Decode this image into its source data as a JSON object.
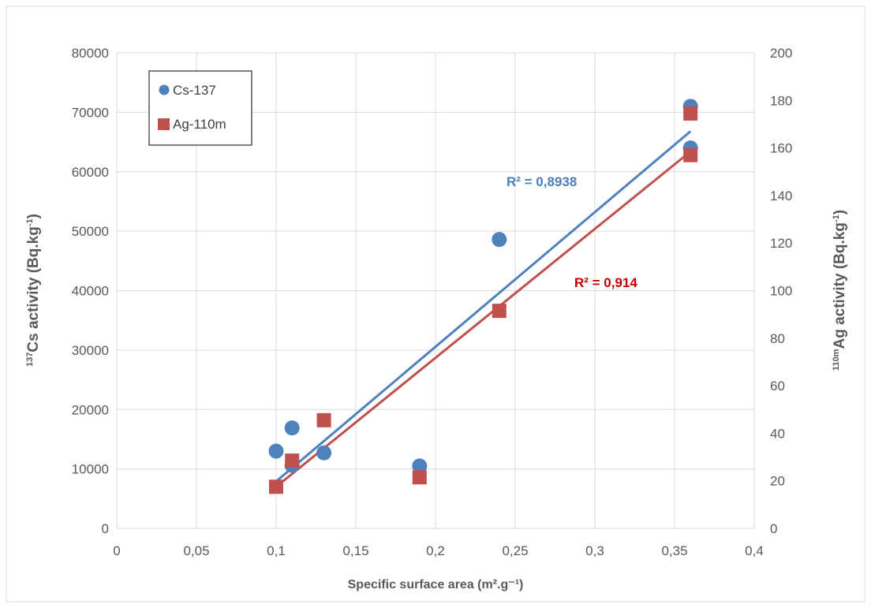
{
  "chart_data": {
    "type": "scatter",
    "xlabel": "Specific surface area (m².g⁻¹)",
    "ylabel_left": {
      "sup": "137",
      "main": "Cs  activity (Bq.kg",
      "exp": "-1",
      "close": ")"
    },
    "ylabel_right": {
      "sup": "110m",
      "main": "Ag  activity (Bq.kg",
      "exp": "-1",
      "close": ")"
    },
    "xlim": [
      0,
      0.4
    ],
    "ylim_left": [
      0,
      80000
    ],
    "ylim_right": [
      0,
      200
    ],
    "x_ticks": [
      "0",
      "0,05",
      "0,1",
      "0,15",
      "0,2",
      "0,25",
      "0,3",
      "0,35",
      "0,4"
    ],
    "y_left_ticks": [
      "0",
      "10000",
      "20000",
      "30000",
      "40000",
      "50000",
      "60000",
      "70000",
      "80000"
    ],
    "y_right_ticks": [
      "0",
      "20",
      "40",
      "60",
      "80",
      "100",
      "120",
      "140",
      "160",
      "180",
      "200"
    ],
    "grid": true,
    "legend_position": "top-left",
    "series": [
      {
        "name": "Cs-137",
        "axis": "left",
        "marker": "circle",
        "color": "#4f81bd",
        "points": [
          [
            0.1,
            13000
          ],
          [
            0.11,
            16900
          ],
          [
            0.11,
            10600
          ],
          [
            0.13,
            12700
          ],
          [
            0.19,
            10500
          ],
          [
            0.24,
            48600
          ],
          [
            0.36,
            71000
          ],
          [
            0.36,
            64000
          ]
        ],
        "trendline": {
          "x": [
            0.1,
            0.36
          ],
          "y": [
            7900,
            66800
          ],
          "label": "R² = 0,8938",
          "label_color": "#4a7ebb"
        }
      },
      {
        "name": "Ag-110m",
        "axis": "right",
        "marker": "square",
        "color": "#c0504d",
        "points": [
          [
            0.1,
            17.5
          ],
          [
            0.11,
            28.5
          ],
          [
            0.13,
            45.5
          ],
          [
            0.19,
            21.5
          ],
          [
            0.24,
            91.5
          ],
          [
            0.36,
            174.5
          ],
          [
            0.36,
            157
          ]
        ],
        "trendline": {
          "x": [
            0.1,
            0.36
          ],
          "y": [
            17.5,
            158.5
          ],
          "label": "R² = 0,914",
          "label_color": "#c00000"
        }
      }
    ]
  }
}
